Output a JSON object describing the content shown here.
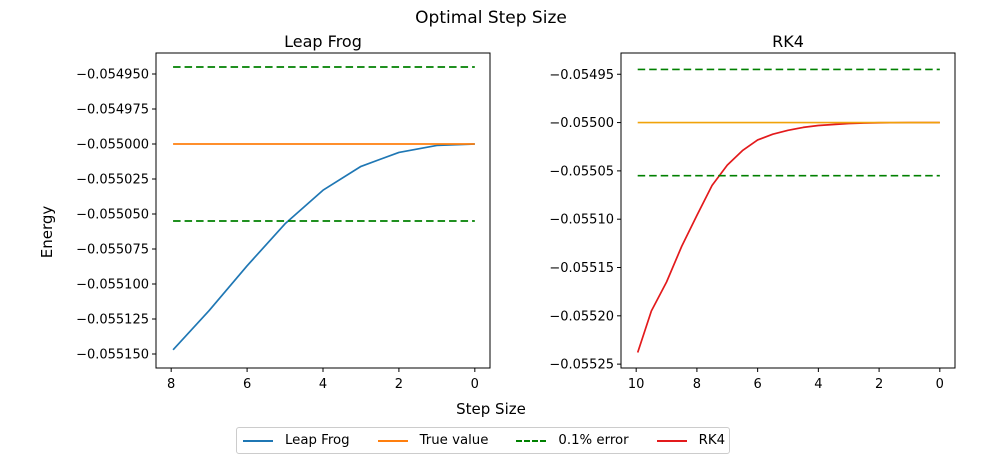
{
  "figure": {
    "suptitle": "Optimal Step Size",
    "xlabel": "Step Size",
    "ylabel": "Energy"
  },
  "colors": {
    "leap_frog": "#1f77b4",
    "true_value_left": "#ff7f0e",
    "true_value_right": "#f0a30a",
    "error_band": "#008000",
    "rk4": "#e31a1c"
  },
  "legend": {
    "items": [
      {
        "label": "Leap Frog",
        "color": "#1f77b4",
        "style": "solid"
      },
      {
        "label": "True value",
        "color": "#ff7f0e",
        "style": "solid"
      },
      {
        "label": "0.1% error",
        "color": "#008000",
        "style": "dashed"
      },
      {
        "label": "RK4",
        "color": "#e31a1c",
        "style": "solid"
      }
    ]
  },
  "chart_data": [
    {
      "type": "line",
      "title": "Leap Frog",
      "xlabel": "",
      "ylabel": "",
      "x_inverted": true,
      "xlim": [
        8.4,
        -0.4
      ],
      "ylim": [
        -0.05516,
        -0.054935
      ],
      "xticks": [
        8,
        6,
        4,
        2,
        0
      ],
      "yticks": [
        -0.05495,
        -0.054975,
        -0.055,
        -0.055025,
        -0.05505,
        -0.055075,
        -0.0551,
        -0.055125,
        -0.05515
      ],
      "ytick_labels": [
        "−0.054950",
        "−0.054975",
        "−0.055000",
        "−0.055025",
        "−0.055050",
        "−0.055075",
        "−0.055100",
        "−0.055125",
        "−0.055150"
      ],
      "grid": false,
      "series": [
        {
          "name": "Leap Frog",
          "color": "#1f77b4",
          "style": "solid",
          "x": [
            7.95,
            7.0,
            6.0,
            5.0,
            4.0,
            3.0,
            2.0,
            1.0,
            0.0
          ],
          "y": [
            -0.055147,
            -0.055119,
            -0.055087,
            -0.055057,
            -0.055033,
            -0.055016,
            -0.055006,
            -0.055001,
            -0.055
          ]
        },
        {
          "name": "True value",
          "color": "#ff7f0e",
          "style": "solid",
          "x": [
            7.95,
            0.0
          ],
          "y": [
            -0.055,
            -0.055
          ]
        },
        {
          "name": "0.1% error",
          "color": "#008000",
          "style": "dashed",
          "x": [
            7.95,
            0.0
          ],
          "y": [
            -0.054945,
            -0.054945
          ]
        },
        {
          "name": "0.1% error",
          "color": "#008000",
          "style": "dashed",
          "x": [
            7.95,
            0.0
          ],
          "y": [
            -0.055055,
            -0.055055
          ]
        }
      ]
    },
    {
      "type": "line",
      "title": "RK4",
      "xlabel": "",
      "ylabel": "",
      "x_inverted": true,
      "xlim": [
        10.5,
        -0.5
      ],
      "ylim": [
        -0.055254,
        -0.054928
      ],
      "xticks": [
        10,
        8,
        6,
        4,
        2,
        0
      ],
      "yticks": [
        -0.05495,
        -0.055,
        -0.05505,
        -0.0551,
        -0.05515,
        -0.0552,
        -0.05525
      ],
      "ytick_labels": [
        "−0.05495",
        "−0.05500",
        "−0.05505",
        "−0.05510",
        "−0.05515",
        "−0.05520",
        "−0.05525"
      ],
      "grid": false,
      "series": [
        {
          "name": "RK4",
          "color": "#e31a1c",
          "style": "solid",
          "x": [
            9.95,
            9.5,
            9.0,
            8.5,
            8.0,
            7.5,
            7.0,
            6.5,
            6.0,
            5.5,
            5.0,
            4.5,
            4.0,
            3.5,
            3.0,
            2.5,
            2.0,
            1.5,
            1.0,
            0.5,
            0.0
          ],
          "y": [
            -0.055238,
            -0.055195,
            -0.055165,
            -0.055128,
            -0.055096,
            -0.055065,
            -0.055044,
            -0.055029,
            -0.055018,
            -0.055012,
            -0.055008,
            -0.055005,
            -0.055003,
            -0.055002,
            -0.055001,
            -0.0550005,
            -0.0550002,
            -0.0550001,
            -0.055,
            -0.055,
            -0.055
          ]
        },
        {
          "name": "True value",
          "color": "#f0a30a",
          "style": "solid",
          "x": [
            9.95,
            0.0
          ],
          "y": [
            -0.055,
            -0.055
          ]
        },
        {
          "name": "0.1% error",
          "color": "#008000",
          "style": "dashed",
          "x": [
            9.95,
            0.0
          ],
          "y": [
            -0.054945,
            -0.054945
          ]
        },
        {
          "name": "0.1% error",
          "color": "#008000",
          "style": "dashed",
          "x": [
            9.95,
            0.0
          ],
          "y": [
            -0.055055,
            -0.055055
          ]
        }
      ]
    }
  ]
}
